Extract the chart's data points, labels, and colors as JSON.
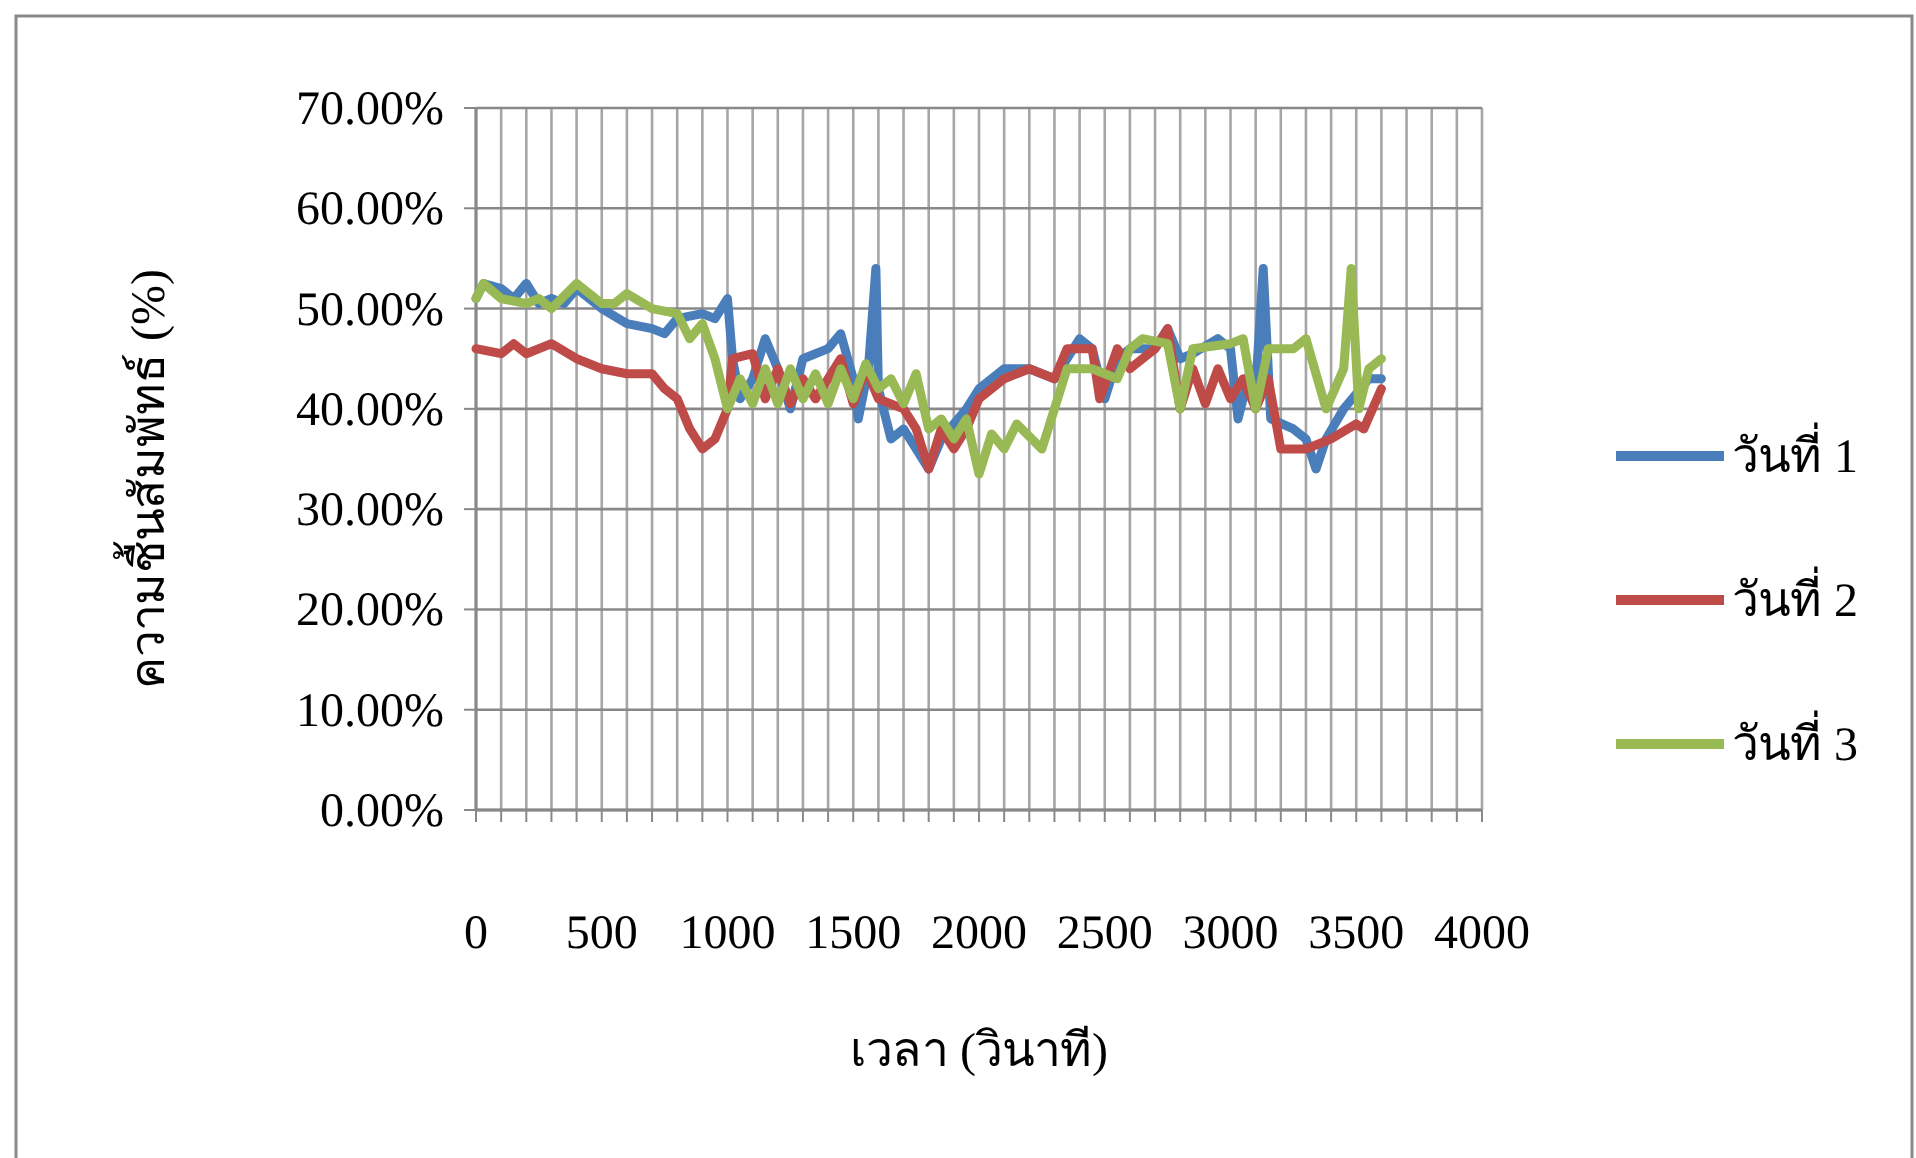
{
  "chart_data": {
    "type": "line",
    "xlabel": "เวลา (วินาที)",
    "ylabel": "ความชื้นสัมพัทธ์ (%)",
    "xlim": [
      0,
      4000
    ],
    "ylim": [
      0,
      70
    ],
    "xticks": [
      0,
      {
        "value": 100,
        "label": null
      },
      {
        "value": 200,
        "label": null
      },
      {
        "value": 300,
        "label": null
      },
      {
        "value": 400,
        "label": null
      },
      500,
      {
        "value": 600,
        "label": null
      },
      {
        "value": 700,
        "label": null
      },
      {
        "value": 800,
        "label": null
      },
      {
        "value": 900,
        "label": null
      },
      1000,
      {
        "value": 1100,
        "label": null
      },
      {
        "value": 1200,
        "label": null
      },
      {
        "value": 1300,
        "label": null
      },
      {
        "value": 1400,
        "label": null
      },
      1500,
      {
        "value": 1600,
        "label": null
      },
      {
        "value": 1700,
        "label": null
      },
      {
        "value": 1800,
        "label": null
      },
      {
        "value": 1900,
        "label": null
      },
      2000,
      {
        "value": 2100,
        "label": null
      },
      {
        "value": 2200,
        "label": null
      },
      {
        "value": 2300,
        "label": null
      },
      {
        "value": 2400,
        "label": null
      },
      2500,
      {
        "value": 2600,
        "label": null
      },
      {
        "value": 2700,
        "label": null
      },
      {
        "value": 2800,
        "label": null
      },
      {
        "value": 2900,
        "label": null
      },
      3000,
      {
        "value": 3100,
        "label": null
      },
      {
        "value": 3200,
        "label": null
      },
      {
        "value": 3300,
        "label": null
      },
      {
        "value": 3400,
        "label": null
      },
      3500,
      {
        "value": 3600,
        "label": null
      },
      {
        "value": 3700,
        "label": null
      },
      {
        "value": 3800,
        "label": null
      },
      {
        "value": 3900,
        "label": null
      },
      4000
    ],
    "yticks": [
      {
        "value": 0,
        "label": "0.00%"
      },
      {
        "value": 10,
        "label": "10.00%"
      },
      {
        "value": 20,
        "label": "20.00%"
      },
      {
        "value": 30,
        "label": "30.00%"
      },
      {
        "value": 40,
        "label": "40.00%"
      },
      {
        "value": 50,
        "label": "50.00%"
      },
      {
        "value": 60,
        "label": "60.00%"
      },
      {
        "value": 70,
        "label": "70.00%"
      }
    ],
    "grid": true,
    "legend": "right",
    "marker": "none",
    "line_style": "solid",
    "series": [
      {
        "name": "วันที่ 1",
        "color": "#4a7ebb",
        "x": [
          0,
          30,
          100,
          150,
          200,
          250,
          300,
          350,
          400,
          500,
          600,
          700,
          750,
          800,
          900,
          950,
          1000,
          1020,
          1050,
          1100,
          1150,
          1200,
          1250,
          1300,
          1400,
          1450,
          1500,
          1520,
          1560,
          1590,
          1600,
          1650,
          1700,
          1750,
          1800,
          1850,
          1950,
          2000,
          2100,
          2200,
          2300,
          2400,
          2450,
          2500,
          2550,
          2600,
          2700,
          2750,
          2800,
          2850,
          2950,
          3000,
          3030,
          3080,
          3100,
          3130,
          3160,
          3250,
          3300,
          3340,
          3380,
          3450,
          3550,
          3600
        ],
        "values": [
          51,
          52.5,
          52,
          51,
          52.5,
          50.5,
          51,
          50.5,
          52,
          50,
          48.5,
          48,
          47.5,
          49,
          49.5,
          49,
          51,
          45,
          41,
          43,
          47,
          44,
          40,
          45,
          46,
          47.5,
          43,
          39,
          44,
          54,
          42,
          37,
          38,
          36,
          34,
          37,
          40,
          42,
          44,
          44,
          43,
          47,
          46,
          41,
          45,
          46,
          46,
          48,
          45,
          45.5,
          47,
          46,
          39,
          44,
          42,
          54,
          39,
          38,
          37,
          34,
          37,
          40,
          43,
          43
        ]
      },
      {
        "name": "วันที่ 2",
        "color": "#be4b48",
        "x": [
          0,
          100,
          150,
          200,
          300,
          400,
          500,
          600,
          700,
          750,
          800,
          850,
          900,
          950,
          1000,
          1020,
          1100,
          1150,
          1200,
          1250,
          1300,
          1350,
          1450,
          1500,
          1550,
          1600,
          1700,
          1750,
          1800,
          1850,
          1900,
          1950,
          2000,
          2100,
          2200,
          2300,
          2350,
          2450,
          2480,
          2550,
          2600,
          2700,
          2750,
          2800,
          2850,
          2900,
          2950,
          3000,
          3050,
          3100,
          3150,
          3200,
          3300,
          3400,
          3500,
          3530,
          3600
        ],
        "values": [
          46,
          45.5,
          46.5,
          45.5,
          46.5,
          45,
          44,
          43.5,
          43.5,
          42,
          41,
          38,
          36,
          37,
          40,
          45,
          45.5,
          41,
          44,
          40.5,
          43,
          41,
          45,
          40.5,
          44,
          41,
          40,
          38,
          34,
          38,
          36,
          38,
          41,
          43,
          44,
          43,
          46,
          46,
          41,
          46,
          44,
          46,
          48,
          40,
          44,
          40.5,
          44,
          41,
          43,
          40,
          43,
          36,
          36,
          37,
          38.5,
          38,
          42
        ]
      },
      {
        "name": "วันที่ 3",
        "color": "#98b954",
        "x": [
          0,
          30,
          100,
          200,
          250,
          300,
          400,
          500,
          550,
          600,
          700,
          800,
          850,
          900,
          950,
          1000,
          1050,
          1100,
          1150,
          1200,
          1250,
          1300,
          1350,
          1400,
          1450,
          1500,
          1550,
          1600,
          1650,
          1700,
          1750,
          1800,
          1850,
          1900,
          1950,
          2000,
          2050,
          2100,
          2150,
          2250,
          2300,
          2350,
          2450,
          2550,
          2600,
          2650,
          2750,
          2800,
          2850,
          3000,
          3050,
          3100,
          3150,
          3250,
          3300,
          3380,
          3450,
          3480,
          3510,
          3550,
          3600
        ],
        "values": [
          51,
          52.5,
          51,
          50.5,
          51,
          50,
          52.5,
          50.5,
          50.5,
          51.5,
          50,
          49.5,
          47,
          48.5,
          45,
          40,
          43,
          40.5,
          44,
          40.5,
          44,
          41,
          43.5,
          40.5,
          44,
          41,
          44.5,
          42,
          43,
          40.5,
          43.5,
          38,
          39,
          37,
          39,
          33.5,
          37.5,
          36,
          38.5,
          36,
          40,
          44,
          44,
          43,
          46,
          47,
          46.5,
          40,
          46,
          46.5,
          47,
          40,
          46,
          46,
          47,
          40,
          44,
          54,
          40,
          44,
          45
        ]
      }
    ]
  }
}
